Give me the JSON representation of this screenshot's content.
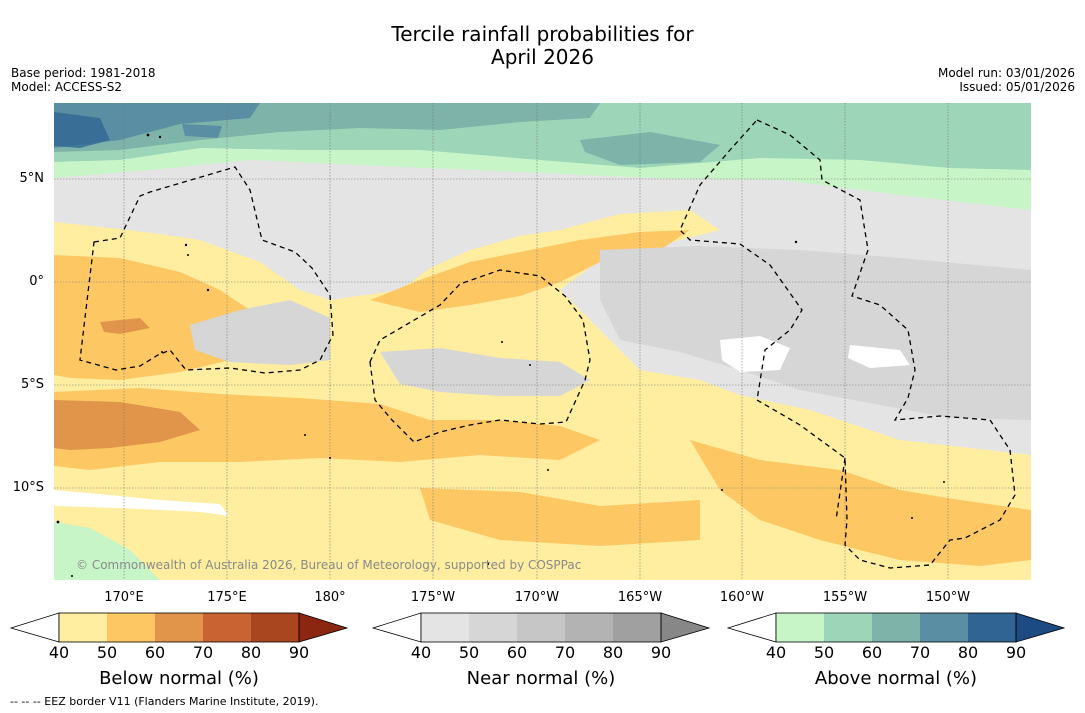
{
  "header": {
    "title_line1": "Tercile rainfall probabilities for",
    "title_line2": "April 2026",
    "base_period": "Base period: 1981-2018",
    "model": "Model: ACCESS-S2",
    "model_run": "Model run: 03/01/2026",
    "issued": "Issued: 05/01/2026"
  },
  "map": {
    "lat_labels": [
      "5°N",
      "0°",
      "5°S",
      "10°S"
    ],
    "lon_labels": [
      "170°E",
      "175°E",
      "180°",
      "175°W",
      "170°W",
      "165°W",
      "160°W",
      "155°W",
      "150°W"
    ],
    "attribution": "© Commonwealth of Australia 2026, Bureau of Meteorology, supported by COSPPac",
    "footnote": "--  --  -- EEZ border V11 (Flanders Marine Institute, 2019)."
  },
  "colorbars": [
    {
      "name": "below-normal",
      "label": "Below normal (%)",
      "ticks": [
        "40",
        "50",
        "60",
        "70",
        "80",
        "90"
      ],
      "colors": [
        "#ffeda0",
        "#fdc863",
        "#e0954a",
        "#ca6332",
        "#a9461f",
        "#8b2710"
      ]
    },
    {
      "name": "near-normal",
      "label": "Near normal (%)",
      "ticks": [
        "40",
        "50",
        "60",
        "70",
        "80",
        "90"
      ],
      "colors": [
        "#e4e4e4",
        "#d6d6d6",
        "#c6c6c6",
        "#b3b3b3",
        "#a0a0a0",
        "#878787"
      ]
    },
    {
      "name": "above-normal",
      "label": "Above normal (%)",
      "ticks": [
        "40",
        "50",
        "60",
        "70",
        "80",
        "90"
      ],
      "colors": [
        "#c8f5c8",
        "#9dd5b8",
        "#7db3a9",
        "#5a8fa3",
        "#2f6493",
        "#1c4a82"
      ]
    }
  ],
  "colors": {
    "white": "#ffffff",
    "below_40": "#ffeda0",
    "below_50": "#fdc863",
    "below_60": "#e0954a",
    "near_40": "#e4e4e4",
    "near_50": "#d6d6d6",
    "above_40": "#c8f5c8",
    "above_50": "#9dd5b8",
    "above_60": "#7db3a9",
    "above_70": "#5a8fa3",
    "above_80": "#2f6493"
  }
}
